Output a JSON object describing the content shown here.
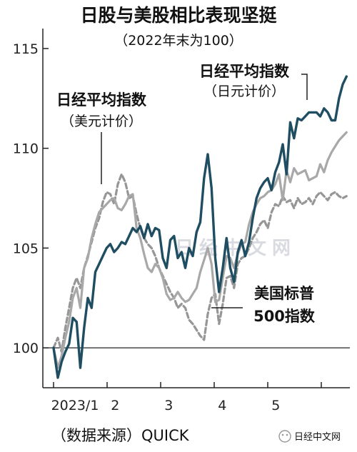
{
  "chart_data": {
    "type": "line",
    "title": "日股与美股相比表现坚挺",
    "subtitle": "（2022年末为100）",
    "source": "（数据来源）QUICK",
    "credit": "日经中文网",
    "watermark": "日经中文网",
    "ylim": [
      98,
      116
    ],
    "xlim": [
      0,
      5.6
    ],
    "y_ticks": [
      100,
      105,
      110,
      115
    ],
    "y_tick_labels": [
      "100",
      "105",
      "110",
      "115"
    ],
    "x_ticks": [
      0,
      1,
      2,
      3,
      4,
      5
    ],
    "x_tick_labels": [
      "2023/1",
      "2",
      "3",
      "4",
      "5"
    ],
    "x_tick_label_positions": [
      0.4,
      1.15,
      2.15,
      3.15,
      4.15,
      5.15
    ],
    "reference_line": 100,
    "labels": {
      "yen_line1": "日经平均指数",
      "yen_line2": "（日元计价）",
      "usd_line1": "日经平均指数",
      "usd_line2": "（美元计价）",
      "sp_line1": "美国标普",
      "sp_line2": "500指数"
    },
    "series": [
      {
        "name": "日经平均指数（日元计价）",
        "color": "#1f4d61",
        "style": "solid",
        "x": [
          0.0,
          0.08,
          0.15,
          0.22,
          0.29,
          0.36,
          0.43,
          0.5,
          0.57,
          0.64,
          0.71,
          0.78,
          0.85,
          0.92,
          0.99,
          1.06,
          1.13,
          1.2,
          1.27,
          1.34,
          1.41,
          1.48,
          1.55,
          1.62,
          1.69,
          1.76,
          1.83,
          1.9,
          1.97,
          2.04,
          2.11,
          2.18,
          2.25,
          2.32,
          2.39,
          2.46,
          2.53,
          2.6,
          2.67,
          2.74,
          2.81,
          2.88,
          2.95,
          3.02,
          3.09,
          3.16,
          3.23,
          3.3,
          3.37,
          3.44,
          3.51,
          3.58,
          3.65,
          3.72,
          3.79,
          3.86,
          3.93,
          4.0,
          4.07,
          4.14,
          4.21,
          4.28,
          4.35,
          4.42,
          4.49,
          4.56,
          4.63,
          4.7,
          4.77,
          4.84,
          4.91,
          4.98,
          5.05,
          5.12,
          5.19,
          5.26,
          5.33,
          5.4,
          5.47
        ],
        "values": [
          100.0,
          98.5,
          99.3,
          99.8,
          100.2,
          101.5,
          101.3,
          99.0,
          101.0,
          102.5,
          102.0,
          103.8,
          104.2,
          104.6,
          105.0,
          105.2,
          104.8,
          105.0,
          105.3,
          105.2,
          105.6,
          106.0,
          105.8,
          106.1,
          105.5,
          106.2,
          105.6,
          106.0,
          105.9,
          104.5,
          104.0,
          105.4,
          105.6,
          104.5,
          104.8,
          104.0,
          105.0,
          104.6,
          105.8,
          106.3,
          108.5,
          109.7,
          108.0,
          104.5,
          102.8,
          104.0,
          105.5,
          104.0,
          103.3,
          104.8,
          105.4,
          104.6,
          105.3,
          106.5,
          107.5,
          108.0,
          108.3,
          108.5,
          107.9,
          108.8,
          109.3,
          110.2,
          108.7,
          111.3,
          110.5,
          111.5,
          111.4,
          111.6,
          111.8,
          111.8,
          111.8,
          111.6,
          112.0,
          111.8,
          111.4,
          111.4,
          112.5,
          113.2,
          113.6
        ]
      },
      {
        "name": "日经平均指数（美元计价）",
        "color": "#a8a8a8",
        "style": "solid",
        "x": [
          0.0,
          0.08,
          0.15,
          0.22,
          0.29,
          0.36,
          0.43,
          0.5,
          0.57,
          0.64,
          0.71,
          0.78,
          0.85,
          0.92,
          0.99,
          1.06,
          1.13,
          1.2,
          1.27,
          1.34,
          1.41,
          1.48,
          1.55,
          1.62,
          1.69,
          1.76,
          1.83,
          1.9,
          1.97,
          2.04,
          2.11,
          2.18,
          2.25,
          2.32,
          2.39,
          2.46,
          2.53,
          2.6,
          2.67,
          2.74,
          2.81,
          2.88,
          2.95,
          3.02,
          3.09,
          3.16,
          3.23,
          3.3,
          3.37,
          3.44,
          3.51,
          3.58,
          3.65,
          3.72,
          3.79,
          3.86,
          3.93,
          4.0,
          4.07,
          4.14,
          4.21,
          4.28,
          4.35,
          4.42,
          4.49,
          4.56,
          4.63,
          4.7,
          4.77,
          4.84,
          4.91,
          4.98,
          5.05,
          5.12,
          5.19,
          5.26,
          5.33,
          5.4,
          5.47
        ],
        "values": [
          100.0,
          99.0,
          99.6,
          100.5,
          101.3,
          102.5,
          103.0,
          102.0,
          104.0,
          104.5,
          105.5,
          106.2,
          106.8,
          107.0,
          107.2,
          107.4,
          107.5,
          107.0,
          106.9,
          107.2,
          107.6,
          107.7,
          106.0,
          105.5,
          104.7,
          104.0,
          103.8,
          104.2,
          104.0,
          103.5,
          102.7,
          102.4,
          102.5,
          102.8,
          102.5,
          102.3,
          102.4,
          102.7,
          103.0,
          103.8,
          104.4,
          105.0,
          104.2,
          102.3,
          102.4,
          103.5,
          104.6,
          104.5,
          104.0,
          104.7,
          105.2,
          105.3,
          106.2,
          106.8,
          107.2,
          107.5,
          107.6,
          107.8,
          107.9,
          108.2,
          108.7,
          107.4,
          108.9,
          108.3,
          109.0,
          108.7,
          108.8,
          108.9,
          108.4,
          108.5,
          108.6,
          109.2,
          108.8,
          109.4,
          109.8,
          110.1,
          110.4,
          110.6,
          110.8
        ]
      },
      {
        "name": "美国标普500指数",
        "color": "#969696",
        "style": "dashed",
        "x": [
          0.0,
          0.08,
          0.15,
          0.22,
          0.29,
          0.36,
          0.43,
          0.5,
          0.57,
          0.64,
          0.71,
          0.78,
          0.85,
          0.92,
          0.99,
          1.06,
          1.13,
          1.2,
          1.27,
          1.34,
          1.41,
          1.48,
          1.55,
          1.62,
          1.69,
          1.76,
          1.83,
          1.9,
          1.97,
          2.04,
          2.11,
          2.18,
          2.25,
          2.32,
          2.39,
          2.46,
          2.53,
          2.6,
          2.67,
          2.74,
          2.81,
          2.88,
          2.95,
          3.02,
          3.09,
          3.16,
          3.23,
          3.3,
          3.37,
          3.44,
          3.51,
          3.58,
          3.65,
          3.72,
          3.79,
          3.86,
          3.93,
          4.0,
          4.07,
          4.14,
          4.21,
          4.28,
          4.35,
          4.42,
          4.49,
          4.56,
          4.63,
          4.7,
          4.77,
          4.84,
          4.91,
          4.98,
          5.05,
          5.12,
          5.19,
          5.26,
          5.33,
          5.4,
          5.47
        ],
        "values": [
          100.0,
          100.5,
          99.8,
          101.0,
          102.0,
          103.0,
          103.5,
          103.0,
          104.0,
          104.6,
          105.3,
          106.0,
          106.5,
          107.3,
          107.8,
          107.7,
          107.2,
          108.2,
          108.7,
          108.3,
          107.5,
          107.6,
          106.7,
          106.0,
          105.5,
          105.2,
          105.0,
          104.6,
          104.0,
          103.6,
          103.2,
          102.8,
          102.5,
          102.0,
          102.2,
          102.0,
          101.4,
          101.2,
          100.9,
          100.6,
          100.4,
          101.7,
          102.5,
          102.7,
          101.2,
          102.2,
          103.5,
          103.6,
          103.0,
          104.2,
          104.5,
          104.6,
          105.0,
          105.5,
          105.8,
          106.2,
          106.4,
          106.0,
          106.8,
          107.2,
          107.1,
          107.6,
          107.3,
          107.4,
          107.0,
          107.5,
          107.2,
          107.3,
          107.5,
          107.2,
          107.6,
          107.8,
          107.6,
          107.4,
          107.7,
          107.8,
          107.6,
          107.5,
          107.6
        ]
      }
    ]
  }
}
